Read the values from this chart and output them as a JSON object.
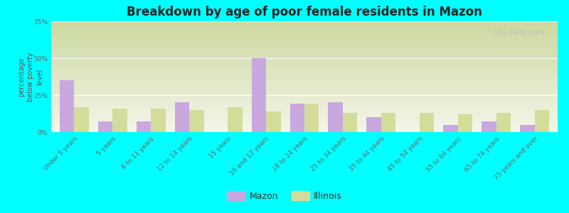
{
  "title": "Breakdown by age of poor female residents in Mazon",
  "ylabel": "percentage\nbelow poverty\nlevel",
  "categories": [
    "Under 5 years",
    "5 years",
    "6 to 11 years",
    "12 to 14 years",
    "15 years",
    "16 and 17 years",
    "18 to 24 years",
    "25 to 34 years",
    "35 to 44 years",
    "45 to 54 years",
    "55 to 64 years",
    "65 to 74 years",
    "75 years and over"
  ],
  "mazon_values": [
    35,
    7,
    7,
    20,
    0,
    50,
    19,
    20,
    10,
    0,
    5,
    7,
    5
  ],
  "illinois_values": [
    17,
    16,
    16,
    15,
    17,
    14,
    19,
    13,
    13,
    13,
    12,
    13,
    15
  ],
  "mazon_color": "#c9a8e0",
  "illinois_color": "#d4dc9a",
  "background_color": "#00ffff",
  "plot_bg_top_color": "#cdd8a0",
  "plot_bg_bottom_color": "#f4f6ea",
  "ylim": [
    0,
    75
  ],
  "yticks": [
    0,
    25,
    50,
    75
  ],
  "ytick_labels": [
    "0%",
    "25%",
    "50%",
    "75%"
  ],
  "bar_width": 0.38,
  "legend_labels": [
    "Mazon",
    "Illinois"
  ],
  "watermark": "City-Data.com",
  "title_fontsize": 12,
  "ylabel_fontsize": 7,
  "tick_fontsize": 6.5,
  "legend_fontsize": 9
}
